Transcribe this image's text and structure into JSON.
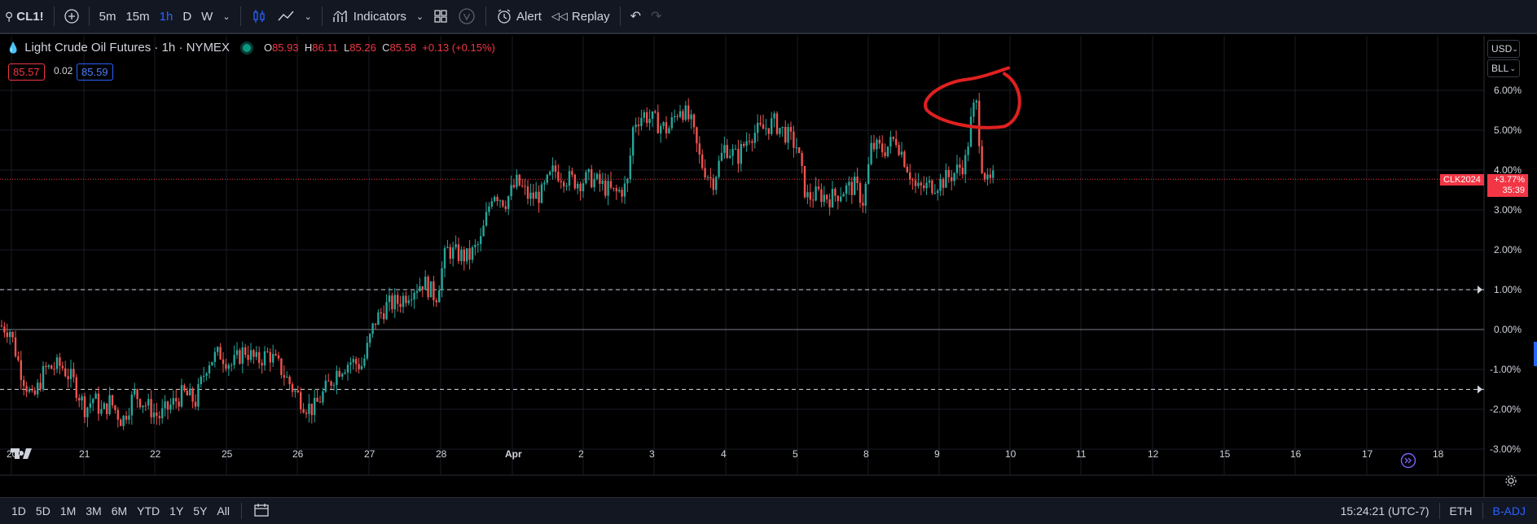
{
  "toolbar": {
    "symbol": "CL1!",
    "intervals": [
      "5m",
      "15m",
      "1h",
      "D",
      "W"
    ],
    "active_interval": "1h",
    "indicators_label": "Indicators",
    "alert_label": "Alert",
    "replay_label": "Replay"
  },
  "legend": {
    "title": "Light Crude Oil Futures · 1h · NYMEX",
    "open_label": "O",
    "open": "85.93",
    "high_label": "H",
    "high": "86.11",
    "low_label": "L",
    "low": "85.26",
    "close_label": "C",
    "close": "85.58",
    "change": "+0.13 (+0.15%)",
    "bid": "85.57",
    "spread": "0.02",
    "ask": "85.59"
  },
  "price_axis": {
    "currency_button": "USD",
    "unit_button": "BLL",
    "ticks": [
      "6.00%",
      "5.00%",
      "4.00%",
      "3.00%",
      "2.00%",
      "1.00%",
      "0.00%",
      "-1.00%",
      "-2.00%",
      "-3.00%"
    ],
    "current_symbol": "CLK2024",
    "current_value": "+3.77%",
    "countdown": "35:39"
  },
  "time_axis": {
    "ticks": [
      "20",
      "21",
      "22",
      "25",
      "26",
      "27",
      "28",
      "Apr",
      "2",
      "3",
      "4",
      "5",
      "8",
      "9",
      "10",
      "11",
      "12",
      "15",
      "16",
      "17",
      "18"
    ]
  },
  "bottom": {
    "ranges": [
      "1D",
      "5D",
      "1M",
      "3M",
      "6M",
      "YTD",
      "1Y",
      "5Y",
      "All"
    ],
    "clock": "15:24:21 (UTC-7)",
    "session": "ETH",
    "adjustment": "B-ADJ"
  },
  "colors": {
    "up": "#26a69a",
    "down": "#ef5350",
    "accent": "#2962ff",
    "annotation": "#e02020"
  },
  "chart_data": {
    "type": "candlestick",
    "scale": "percent",
    "ylim": [
      -3.5,
      6.5
    ],
    "reference_lines": [
      1.0,
      0.0,
      -1.5
    ],
    "current_level": 3.77,
    "path": [
      [
        0,
        0.1
      ],
      [
        12,
        0.0
      ],
      [
        25,
        -1.0
      ],
      [
        40,
        -1.8
      ],
      [
        55,
        -1.0
      ],
      [
        75,
        -0.9
      ],
      [
        90,
        -1.3
      ],
      [
        105,
        -2.0
      ],
      [
        115,
        -1.7
      ],
      [
        125,
        -2.1
      ],
      [
        135,
        -1.8
      ],
      [
        150,
        -2.3
      ],
      [
        165,
        -1.6
      ],
      [
        180,
        -1.9
      ],
      [
        195,
        -2.2
      ],
      [
        210,
        -1.9
      ],
      [
        225,
        -1.6
      ],
      [
        240,
        -1.8
      ],
      [
        255,
        -0.8
      ],
      [
        270,
        -0.6
      ],
      [
        285,
        -0.9
      ],
      [
        300,
        -0.5
      ],
      [
        315,
        -0.8
      ],
      [
        330,
        -0.6
      ],
      [
        345,
        -1.0
      ],
      [
        360,
        -1.5
      ],
      [
        375,
        -1.9
      ],
      [
        385,
        -2.0
      ],
      [
        400,
        -1.5
      ],
      [
        415,
        -1.0
      ],
      [
        430,
        -0.8
      ],
      [
        445,
        -0.9
      ],
      [
        460,
        0.2
      ],
      [
        475,
        0.6
      ],
      [
        490,
        0.7
      ],
      [
        505,
        1.0
      ],
      [
        520,
        1.2
      ],
      [
        535,
        0.8
      ],
      [
        548,
        2.0
      ],
      [
        560,
        1.9
      ],
      [
        575,
        1.8
      ],
      [
        590,
        2.2
      ],
      [
        605,
        3.5
      ],
      [
        620,
        3.2
      ],
      [
        635,
        3.7
      ],
      [
        650,
        3.3
      ],
      [
        665,
        3.4
      ],
      [
        680,
        4.0
      ],
      [
        695,
        3.8
      ],
      [
        710,
        3.7
      ],
      [
        725,
        3.8
      ],
      [
        740,
        3.6
      ],
      [
        755,
        3.4
      ],
      [
        770,
        3.6
      ],
      [
        778,
        5.2
      ],
      [
        790,
        5.4
      ],
      [
        805,
        5.2
      ],
      [
        820,
        5.0
      ],
      [
        835,
        5.6
      ],
      [
        848,
        5.2
      ],
      [
        860,
        4.2
      ],
      [
        875,
        3.7
      ],
      [
        890,
        4.6
      ],
      [
        905,
        4.3
      ],
      [
        920,
        4.9
      ],
      [
        935,
        5.0
      ],
      [
        950,
        5.2
      ],
      [
        965,
        4.9
      ],
      [
        978,
        4.6
      ],
      [
        990,
        3.3
      ],
      [
        1005,
        3.4
      ],
      [
        1020,
        3.3
      ],
      [
        1035,
        3.5
      ],
      [
        1050,
        3.6
      ],
      [
        1060,
        3.2
      ],
      [
        1070,
        4.6
      ],
      [
        1085,
        4.5
      ],
      [
        1100,
        4.8
      ],
      [
        1110,
        4.3
      ],
      [
        1125,
        3.5
      ],
      [
        1140,
        3.6
      ],
      [
        1155,
        3.7
      ],
      [
        1170,
        3.9
      ],
      [
        1185,
        4.2
      ],
      [
        1192,
        5.2
      ],
      [
        1198,
        5.8
      ],
      [
        1205,
        4.2
      ],
      [
        1213,
        3.6
      ],
      [
        1220,
        3.8
      ]
    ],
    "annotation_circle": {
      "x": 1188,
      "y": 5.5
    }
  }
}
